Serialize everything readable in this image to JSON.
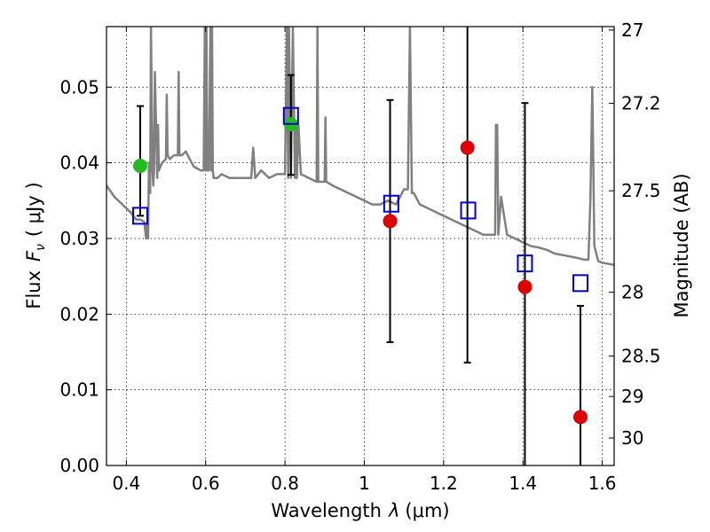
{
  "chart_data": {
    "type": "scatter",
    "xlabel_text": "Wavelength",
    "xlabel_symbol": "λ",
    "xlabel_unit": "(μm)",
    "ylabel_text": "Flux",
    "ylabel_symbol": "F",
    "ylabel_subscript": "ν",
    "ylabel_unit": "( μJy )",
    "y2label": "Magnitude (AB)",
    "xlim": [
      0.35,
      1.63
    ],
    "ylim": [
      0.0,
      0.058
    ],
    "xticks": [
      0.4,
      0.6,
      0.8,
      1.0,
      1.2,
      1.4,
      1.6
    ],
    "xtick_labels": [
      "0.4",
      "0.6",
      "0.8",
      "1",
      "1.2",
      "1.4",
      "1.6"
    ],
    "yticks": [
      0.0,
      0.01,
      0.02,
      0.03,
      0.04,
      0.05
    ],
    "ytick_labels": [
      "0.00",
      "0.01",
      "0.02",
      "0.03",
      "0.04",
      "0.05"
    ],
    "y2ticks": [
      27,
      27.2,
      27.5,
      28,
      28.5,
      29,
      30
    ],
    "y2tick_labels": [
      "27",
      "27.2",
      "27.5",
      "28",
      "28.5",
      "29",
      "30"
    ],
    "grid": true,
    "series": [
      {
        "marker": "circle",
        "color": "#dd0000",
        "points": [
          {
            "x": 1.065,
            "y": 0.0323,
            "yerr_low": 0.0163,
            "yerr_high": 0.0483
          },
          {
            "x": 1.26,
            "y": 0.042,
            "yerr_low": 0.0136,
            "yerr_high": 0.058
          },
          {
            "x": 1.405,
            "y": 0.0236,
            "yerr_low": 0.0,
            "yerr_high": 0.0479
          },
          {
            "x": 1.545,
            "y": 0.0064,
            "yerr_low": 0.0,
            "yerr_high": 0.0211
          }
        ]
      },
      {
        "marker": "circle",
        "color": "#22bb22",
        "points": [
          {
            "x": 0.435,
            "y": 0.0396,
            "yerr_low": 0.033,
            "yerr_high": 0.0475
          },
          {
            "x": 0.815,
            "y": 0.0451,
            "yerr_low": 0.0384,
            "yerr_high": 0.0516
          }
        ]
      },
      {
        "marker": "square-open",
        "color": "#0000cc",
        "points": [
          {
            "x": 0.435,
            "y": 0.033
          },
          {
            "x": 0.815,
            "y": 0.0462
          },
          {
            "x": 1.068,
            "y": 0.0346
          },
          {
            "x": 1.262,
            "y": 0.0337
          },
          {
            "x": 1.405,
            "y": 0.0267
          },
          {
            "x": 1.545,
            "y": 0.0241
          }
        ]
      }
    ],
    "errorbar_color": "#000000",
    "model_spectrum": {
      "color": "#808080",
      "x": [
        0.35,
        0.37,
        0.39,
        0.41,
        0.425,
        0.435,
        0.445,
        0.45,
        0.452,
        0.455,
        0.457,
        0.46,
        0.462,
        0.466,
        0.468,
        0.47,
        0.472,
        0.478,
        0.48,
        0.482,
        0.486,
        0.49,
        0.5,
        0.502,
        0.504,
        0.51,
        0.52,
        0.53,
        0.532,
        0.534,
        0.54,
        0.55,
        0.56,
        0.57,
        0.58,
        0.588,
        0.595,
        0.598,
        0.6,
        0.602,
        0.604,
        0.608,
        0.612,
        0.614,
        0.616,
        0.618,
        0.62,
        0.63,
        0.64,
        0.66,
        0.68,
        0.7,
        0.715,
        0.72,
        0.725,
        0.74,
        0.76,
        0.78,
        0.8,
        0.805,
        0.808,
        0.81,
        0.815,
        0.82,
        0.825,
        0.828,
        0.83,
        0.834,
        0.84,
        0.86,
        0.88,
        0.882,
        0.884,
        0.9,
        0.902,
        0.904,
        0.92,
        0.94,
        0.96,
        0.98,
        1.0,
        1.02,
        1.04,
        1.06,
        1.08,
        1.1,
        1.11,
        1.115,
        1.12,
        1.125,
        1.14,
        1.16,
        1.18,
        1.2,
        1.22,
        1.24,
        1.26,
        1.28,
        1.3,
        1.32,
        1.33,
        1.332,
        1.335,
        1.338,
        1.345,
        1.36,
        1.38,
        1.4,
        1.42,
        1.44,
        1.46,
        1.48,
        1.5,
        1.52,
        1.54,
        1.555,
        1.565,
        1.57,
        1.575,
        1.58,
        1.59,
        1.6,
        1.63
      ],
      "y": [
        0.037,
        0.0355,
        0.0345,
        0.0335,
        0.0325,
        0.0325,
        0.0322,
        0.03,
        0.032,
        0.03,
        0.04,
        0.036,
        0.058,
        0.039,
        0.037,
        0.039,
        0.052,
        0.038,
        0.045,
        0.039,
        0.0395,
        0.04,
        0.0405,
        0.049,
        0.041,
        0.0405,
        0.041,
        0.041,
        0.052,
        0.041,
        0.041,
        0.0415,
        0.0405,
        0.0395,
        0.0392,
        0.039,
        0.039,
        0.058,
        0.039,
        0.058,
        0.039,
        0.039,
        0.058,
        0.039,
        0.058,
        0.039,
        0.038,
        0.038,
        0.0385,
        0.038,
        0.038,
        0.038,
        0.038,
        0.042,
        0.038,
        0.039,
        0.038,
        0.0385,
        0.0385,
        0.058,
        0.038,
        0.058,
        0.038,
        0.058,
        0.038,
        0.045,
        0.038,
        0.045,
        0.0385,
        0.038,
        0.0375,
        0.058,
        0.0375,
        0.0375,
        0.046,
        0.0375,
        0.037,
        0.0365,
        0.036,
        0.0355,
        0.035,
        0.0345,
        0.0345,
        0.035,
        0.0345,
        0.0365,
        0.0365,
        0.058,
        0.036,
        0.036,
        0.0345,
        0.034,
        0.0335,
        0.033,
        0.0325,
        0.032,
        0.0315,
        0.031,
        0.0305,
        0.0305,
        0.0305,
        0.045,
        0.045,
        0.0305,
        0.0355,
        0.0305,
        0.03,
        0.0295,
        0.029,
        0.0288,
        0.0285,
        0.028,
        0.0278,
        0.0276,
        0.0274,
        0.0272,
        0.0272,
        0.035,
        0.05,
        0.029,
        0.027,
        0.0268,
        0.0265
      ]
    }
  }
}
